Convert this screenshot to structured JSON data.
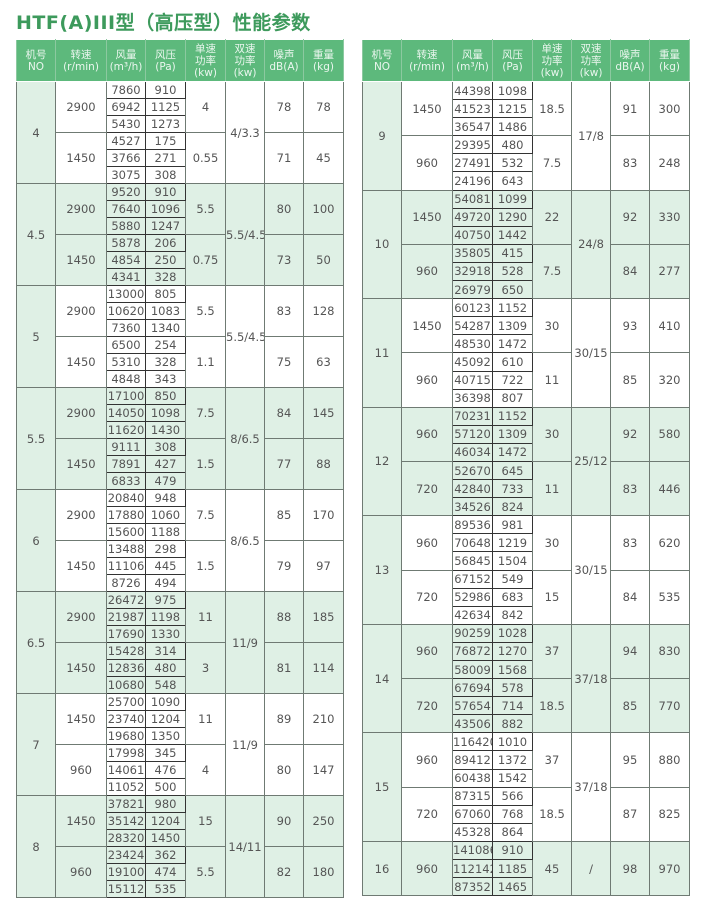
{
  "title": "HTF(A)III型（高压型）性能参数",
  "colors": {
    "header_bg": "#5db97c",
    "shade_bg": "#dff0e5",
    "title": "#3d9a5c"
  },
  "headers": [
    [
      "机号",
      "NO"
    ],
    [
      "转速",
      "(r/min)"
    ],
    [
      "风量",
      "(m³/h)"
    ],
    [
      "风压",
      "(Pa)"
    ],
    [
      "单速",
      "功率",
      "(kw)"
    ],
    [
      "双速",
      "功率",
      "(kw)"
    ],
    [
      "噪声",
      "dB(A)"
    ],
    [
      "重量",
      "(kg)"
    ]
  ],
  "tables": [
    [
      {
        "no": "4",
        "dual": "4/3.3",
        "shaded": false,
        "speeds": [
          {
            "rpm": "2900",
            "single": "4",
            "noise": "78",
            "weight": "78",
            "points": [
              [
                "7860",
                "910"
              ],
              [
                "6942",
                "1125"
              ],
              [
                "5430",
                "1273"
              ]
            ]
          },
          {
            "rpm": "1450",
            "single": "0.55",
            "noise": "71",
            "weight": "45",
            "points": [
              [
                "4527",
                "175"
              ],
              [
                "3766",
                "271"
              ],
              [
                "3075",
                "308"
              ]
            ]
          }
        ]
      },
      {
        "no": "4.5",
        "dual": "5.5/4.5",
        "shaded": true,
        "speeds": [
          {
            "rpm": "2900",
            "single": "5.5",
            "noise": "80",
            "weight": "100",
            "points": [
              [
                "9520",
                "910"
              ],
              [
                "7640",
                "1096"
              ],
              [
                "5880",
                "1247"
              ]
            ]
          },
          {
            "rpm": "1450",
            "single": "0.75",
            "noise": "73",
            "weight": "50",
            "points": [
              [
                "5878",
                "206"
              ],
              [
                "4854",
                "250"
              ],
              [
                "4341",
                "328"
              ]
            ]
          }
        ]
      },
      {
        "no": "5",
        "dual": "5.5/4.5",
        "shaded": false,
        "speeds": [
          {
            "rpm": "2900",
            "single": "5.5",
            "noise": "83",
            "weight": "128",
            "points": [
              [
                "13000",
                "805"
              ],
              [
                "10620",
                "1083"
              ],
              [
                "7360",
                "1340"
              ]
            ]
          },
          {
            "rpm": "1450",
            "single": "1.1",
            "noise": "75",
            "weight": "63",
            "points": [
              [
                "6500",
                "254"
              ],
              [
                "5310",
                "328"
              ],
              [
                "4848",
                "343"
              ]
            ]
          }
        ]
      },
      {
        "no": "5.5",
        "dual": "8/6.5",
        "shaded": true,
        "speeds": [
          {
            "rpm": "2900",
            "single": "7.5",
            "noise": "84",
            "weight": "145",
            "points": [
              [
                "17100",
                "850"
              ],
              [
                "14050",
                "1098"
              ],
              [
                "11620",
                "1430"
              ]
            ]
          },
          {
            "rpm": "1450",
            "single": "1.5",
            "noise": "77",
            "weight": "88",
            "points": [
              [
                "9111",
                "308"
              ],
              [
                "7891",
                "427"
              ],
              [
                "6833",
                "479"
              ]
            ]
          }
        ]
      },
      {
        "no": "6",
        "dual": "8/6.5",
        "shaded": false,
        "speeds": [
          {
            "rpm": "2900",
            "single": "7.5",
            "noise": "85",
            "weight": "170",
            "points": [
              [
                "20840",
                "948"
              ],
              [
                "17880",
                "1060"
              ],
              [
                "15600",
                "1188"
              ]
            ]
          },
          {
            "rpm": "1450",
            "single": "1.5",
            "noise": "79",
            "weight": "97",
            "points": [
              [
                "13488",
                "298"
              ],
              [
                "11106",
                "445"
              ],
              [
                "8726",
                "494"
              ]
            ]
          }
        ]
      },
      {
        "no": "6.5",
        "dual": "11/9",
        "shaded": true,
        "speeds": [
          {
            "rpm": "2900",
            "single": "11",
            "noise": "88",
            "weight": "185",
            "points": [
              [
                "26472",
                "975"
              ],
              [
                "21987",
                "1198"
              ],
              [
                "17690",
                "1330"
              ]
            ]
          },
          {
            "rpm": "1450",
            "single": "3",
            "noise": "81",
            "weight": "114",
            "points": [
              [
                "15428",
                "314"
              ],
              [
                "12836",
                "480"
              ],
              [
                "10680",
                "548"
              ]
            ]
          }
        ]
      },
      {
        "no": "7",
        "dual": "11/9",
        "shaded": false,
        "speeds": [
          {
            "rpm": "1450",
            "single": "11",
            "noise": "89",
            "weight": "210",
            "points": [
              [
                "25700",
                "1090"
              ],
              [
                "23740",
                "1204"
              ],
              [
                "19680",
                "1350"
              ]
            ]
          },
          {
            "rpm": "960",
            "single": "4",
            "noise": "80",
            "weight": "147",
            "points": [
              [
                "17998",
                "345"
              ],
              [
                "14061",
                "476"
              ],
              [
                "11052",
                "500"
              ]
            ]
          }
        ]
      },
      {
        "no": "8",
        "dual": "14/11",
        "shaded": true,
        "speeds": [
          {
            "rpm": "1450",
            "single": "15",
            "noise": "90",
            "weight": "250",
            "points": [
              [
                "37821",
                "980"
              ],
              [
                "35142",
                "1204"
              ],
              [
                "28320",
                "1450"
              ]
            ]
          },
          {
            "rpm": "960",
            "single": "5.5",
            "noise": "82",
            "weight": "180",
            "points": [
              [
                "23424",
                "362"
              ],
              [
                "19100",
                "474"
              ],
              [
                "15112",
                "535"
              ]
            ]
          }
        ]
      }
    ],
    [
      {
        "no": "9",
        "dual": "17/8",
        "shaded": false,
        "speeds": [
          {
            "rpm": "1450",
            "single": "18.5",
            "noise": "91",
            "weight": "300",
            "points": [
              [
                "44398",
                "1098"
              ],
              [
                "41523",
                "1215"
              ],
              [
                "36547",
                "1486"
              ]
            ]
          },
          {
            "rpm": "960",
            "single": "7.5",
            "noise": "83",
            "weight": "248",
            "points": [
              [
                "29395",
                "480"
              ],
              [
                "27491",
                "532"
              ],
              [
                "24196",
                "643"
              ]
            ]
          }
        ]
      },
      {
        "no": "10",
        "dual": "24/8",
        "shaded": true,
        "speeds": [
          {
            "rpm": "1450",
            "single": "22",
            "noise": "92",
            "weight": "330",
            "points": [
              [
                "54081",
                "1099"
              ],
              [
                "49720",
                "1290"
              ],
              [
                "40750",
                "1442"
              ]
            ]
          },
          {
            "rpm": "960",
            "single": "7.5",
            "noise": "84",
            "weight": "277",
            "points": [
              [
                "35805",
                "415"
              ],
              [
                "32918",
                "528"
              ],
              [
                "26979",
                "650"
              ]
            ]
          }
        ]
      },
      {
        "no": "11",
        "dual": "30/15",
        "shaded": false,
        "speeds": [
          {
            "rpm": "1450",
            "single": "30",
            "noise": "93",
            "weight": "410",
            "points": [
              [
                "60123",
                "1152"
              ],
              [
                "54287",
                "1309"
              ],
              [
                "48530",
                "1472"
              ]
            ]
          },
          {
            "rpm": "960",
            "single": "11",
            "noise": "85",
            "weight": "320",
            "points": [
              [
                "45092",
                "610"
              ],
              [
                "40715",
                "722"
              ],
              [
                "36398",
                "807"
              ]
            ]
          }
        ]
      },
      {
        "no": "12",
        "dual": "25/12",
        "shaded": true,
        "speeds": [
          {
            "rpm": "960",
            "single": "30",
            "noise": "92",
            "weight": "580",
            "points": [
              [
                "70231",
                "1152"
              ],
              [
                "57120",
                "1309"
              ],
              [
                "46034",
                "1472"
              ]
            ]
          },
          {
            "rpm": "720",
            "single": "11",
            "noise": "83",
            "weight": "446",
            "points": [
              [
                "52670",
                "645"
              ],
              [
                "42840",
                "733"
              ],
              [
                "34526",
                "824"
              ]
            ]
          }
        ]
      },
      {
        "no": "13",
        "dual": "30/15",
        "shaded": false,
        "speeds": [
          {
            "rpm": "960",
            "single": "30",
            "noise": "83",
            "weight": "620",
            "points": [
              [
                "89536",
                "981"
              ],
              [
                "70648",
                "1219"
              ],
              [
                "56845",
                "1504"
              ]
            ]
          },
          {
            "rpm": "720",
            "single": "15",
            "noise": "84",
            "weight": "535",
            "points": [
              [
                "67152",
                "549"
              ],
              [
                "52986",
                "683"
              ],
              [
                "42634",
                "842"
              ]
            ]
          }
        ]
      },
      {
        "no": "14",
        "dual": "37/18",
        "shaded": true,
        "speeds": [
          {
            "rpm": "960",
            "single": "37",
            "noise": "94",
            "weight": "830",
            "points": [
              [
                "90259",
                "1028"
              ],
              [
                "76872",
                "1270"
              ],
              [
                "58009",
                "1568"
              ]
            ]
          },
          {
            "rpm": "720",
            "single": "18.5",
            "noise": "85",
            "weight": "770",
            "points": [
              [
                "67694",
                "578"
              ],
              [
                "57654",
                "714"
              ],
              [
                "43506",
                "882"
              ]
            ]
          }
        ]
      },
      {
        "no": "15",
        "dual": "37/18",
        "shaded": false,
        "speeds": [
          {
            "rpm": "960",
            "single": "37",
            "noise": "95",
            "weight": "880",
            "points": [
              [
                "116420",
                "1010"
              ],
              [
                "89412",
                "1372"
              ],
              [
                "60438",
                "1542"
              ]
            ]
          },
          {
            "rpm": "720",
            "single": "18.5",
            "noise": "87",
            "weight": "825",
            "points": [
              [
                "87315",
                "566"
              ],
              [
                "67060",
                "768"
              ],
              [
                "45328",
                "864"
              ]
            ]
          }
        ]
      },
      {
        "no": "16",
        "dual": "/",
        "shaded": true,
        "speeds": [
          {
            "rpm": "960",
            "single": "45",
            "noise": "98",
            "weight": "970",
            "points": [
              [
                "141086",
                "910"
              ],
              [
                "112142",
                "1185"
              ],
              [
                "87352",
                "1465"
              ]
            ]
          }
        ]
      }
    ]
  ]
}
